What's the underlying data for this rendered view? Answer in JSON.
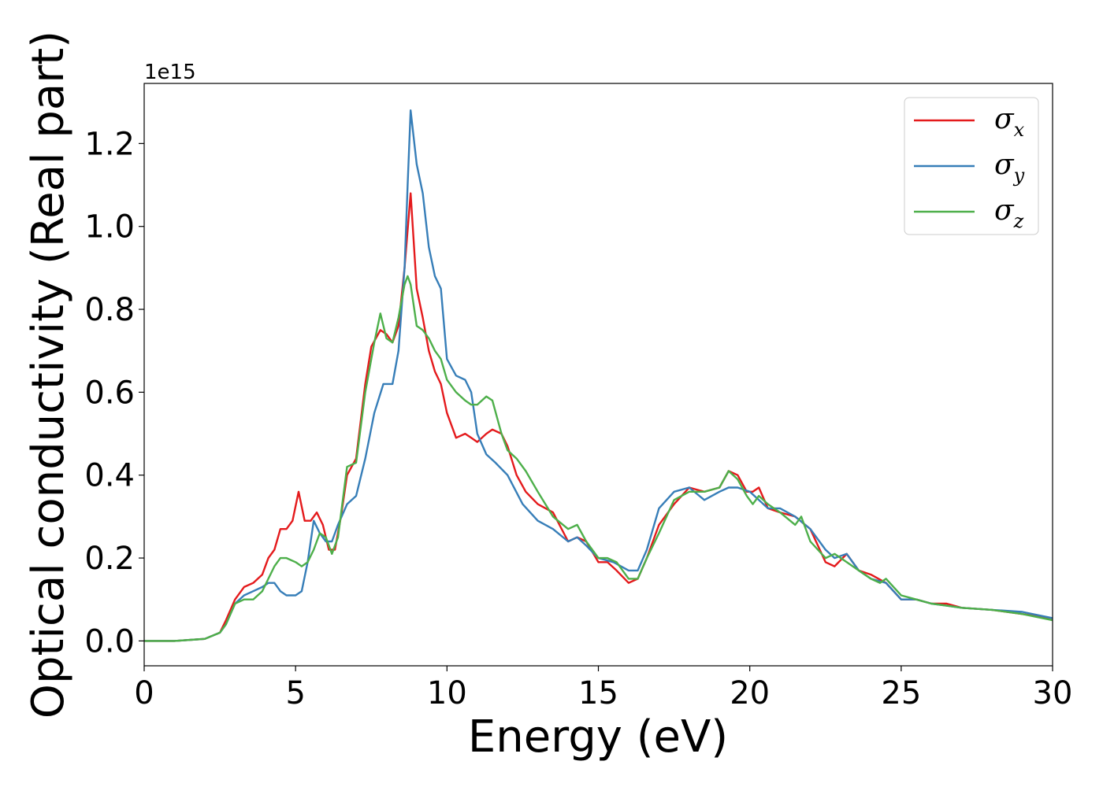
{
  "chart_data": {
    "type": "line",
    "title": "",
    "xlabel": "Energy (eV)",
    "ylabel": "Optical conductivity (Real part)",
    "y_offset_label": "1e15",
    "xlim": [
      0,
      30
    ],
    "ylim": [
      -0.06,
      1.345
    ],
    "x_ticks": [
      0,
      5,
      10,
      15,
      20,
      25,
      30
    ],
    "x_tick_labels": [
      "0",
      "5",
      "10",
      "15",
      "20",
      "25",
      "30"
    ],
    "y_ticks": [
      0.0,
      0.2,
      0.4,
      0.6,
      0.8,
      1.0,
      1.2
    ],
    "y_tick_labels": [
      "0.0",
      "0.2",
      "0.4",
      "0.6",
      "0.8",
      "1.0",
      "1.2"
    ],
    "grid": false,
    "legend_position": "top-right",
    "series": [
      {
        "name": "σ_x",
        "legend_symbol": "σ",
        "legend_subscript": "x",
        "color": "#e41a1c",
        "x": [
          0,
          1,
          2,
          2.5,
          2.7,
          3.0,
          3.3,
          3.6,
          3.9,
          4.1,
          4.3,
          4.5,
          4.7,
          4.9,
          5.1,
          5.3,
          5.5,
          5.7,
          5.9,
          6.1,
          6.3,
          6.5,
          6.7,
          7.0,
          7.3,
          7.5,
          7.8,
          8.0,
          8.2,
          8.4,
          8.6,
          8.8,
          9.0,
          9.2,
          9.4,
          9.6,
          9.8,
          10.0,
          10.3,
          10.6,
          10.8,
          11.0,
          11.3,
          11.5,
          11.8,
          12.0,
          12.3,
          12.6,
          13.0,
          13.5,
          14.0,
          14.3,
          14.6,
          15.0,
          15.3,
          15.6,
          16.0,
          16.3,
          16.6,
          17.0,
          17.5,
          18.0,
          18.5,
          19.0,
          19.3,
          19.6,
          19.9,
          20.1,
          20.3,
          20.6,
          21.0,
          21.5,
          22.0,
          22.5,
          22.8,
          23.2,
          23.6,
          24.0,
          24.5,
          25.0,
          25.5,
          26.0,
          26.5,
          27.0,
          28.0,
          29.0,
          30.0
        ],
        "y": [
          0.0,
          0.0,
          0.005,
          0.02,
          0.05,
          0.1,
          0.13,
          0.14,
          0.16,
          0.2,
          0.22,
          0.27,
          0.27,
          0.29,
          0.36,
          0.29,
          0.29,
          0.31,
          0.28,
          0.22,
          0.22,
          0.3,
          0.4,
          0.44,
          0.62,
          0.71,
          0.75,
          0.74,
          0.72,
          0.76,
          0.9,
          1.08,
          0.85,
          0.78,
          0.7,
          0.65,
          0.62,
          0.55,
          0.49,
          0.5,
          0.49,
          0.48,
          0.5,
          0.51,
          0.5,
          0.47,
          0.4,
          0.36,
          0.33,
          0.31,
          0.24,
          0.25,
          0.24,
          0.19,
          0.19,
          0.17,
          0.14,
          0.15,
          0.2,
          0.28,
          0.33,
          0.37,
          0.36,
          0.37,
          0.41,
          0.4,
          0.36,
          0.36,
          0.37,
          0.32,
          0.31,
          0.3,
          0.27,
          0.19,
          0.18,
          0.21,
          0.17,
          0.16,
          0.14,
          0.1,
          0.1,
          0.09,
          0.09,
          0.08,
          0.075,
          0.065,
          0.055
        ]
      },
      {
        "name": "σ_y",
        "legend_symbol": "σ",
        "legend_subscript": "y",
        "color": "#377eb8",
        "x": [
          0,
          1,
          2,
          2.5,
          2.7,
          3.0,
          3.3,
          3.6,
          3.9,
          4.1,
          4.3,
          4.5,
          4.7,
          5.0,
          5.2,
          5.4,
          5.6,
          5.8,
          6.0,
          6.2,
          6.4,
          6.7,
          7.0,
          7.3,
          7.6,
          7.9,
          8.2,
          8.4,
          8.6,
          8.7,
          8.8,
          9.0,
          9.2,
          9.4,
          9.6,
          9.8,
          10.0,
          10.3,
          10.6,
          10.8,
          11.0,
          11.3,
          11.6,
          12.0,
          12.5,
          13.0,
          13.5,
          14.0,
          14.3,
          14.6,
          15.0,
          15.5,
          16.0,
          16.3,
          16.6,
          17.0,
          17.5,
          18.0,
          18.5,
          19.0,
          19.3,
          19.6,
          20.0,
          20.3,
          20.6,
          21.0,
          21.5,
          22.0,
          22.5,
          22.8,
          23.2,
          23.6,
          24.0,
          24.5,
          25.0,
          25.5,
          26.0,
          26.5,
          27.0,
          28.0,
          29.0,
          30.0
        ],
        "y": [
          0.0,
          0.0,
          0.005,
          0.02,
          0.04,
          0.09,
          0.11,
          0.12,
          0.13,
          0.14,
          0.14,
          0.12,
          0.11,
          0.11,
          0.12,
          0.19,
          0.29,
          0.26,
          0.24,
          0.24,
          0.28,
          0.33,
          0.35,
          0.44,
          0.55,
          0.62,
          0.62,
          0.7,
          0.9,
          1.1,
          1.28,
          1.15,
          1.08,
          0.95,
          0.88,
          0.85,
          0.68,
          0.64,
          0.63,
          0.6,
          0.5,
          0.45,
          0.43,
          0.4,
          0.33,
          0.29,
          0.27,
          0.24,
          0.25,
          0.23,
          0.2,
          0.19,
          0.17,
          0.17,
          0.22,
          0.32,
          0.36,
          0.37,
          0.34,
          0.36,
          0.37,
          0.37,
          0.36,
          0.34,
          0.32,
          0.32,
          0.3,
          0.27,
          0.22,
          0.2,
          0.21,
          0.17,
          0.15,
          0.14,
          0.1,
          0.1,
          0.09,
          0.085,
          0.08,
          0.075,
          0.07,
          0.055
        ]
      },
      {
        "name": "σ_z",
        "legend_symbol": "σ",
        "legend_subscript": "z",
        "color": "#4daf4a",
        "x": [
          0,
          1,
          2,
          2.5,
          2.7,
          3.0,
          3.3,
          3.6,
          3.9,
          4.1,
          4.3,
          4.5,
          4.7,
          5.0,
          5.2,
          5.4,
          5.6,
          5.8,
          6.0,
          6.2,
          6.4,
          6.7,
          7.0,
          7.3,
          7.6,
          7.8,
          8.0,
          8.2,
          8.4,
          8.6,
          8.7,
          8.8,
          9.0,
          9.2,
          9.4,
          9.6,
          9.8,
          10.0,
          10.3,
          10.6,
          10.8,
          11.0,
          11.3,
          11.5,
          11.8,
          12.0,
          12.3,
          12.6,
          13.0,
          13.5,
          14.0,
          14.3,
          14.6,
          15.0,
          15.3,
          15.6,
          16.0,
          16.3,
          16.6,
          17.0,
          17.5,
          18.0,
          18.5,
          19.0,
          19.3,
          19.6,
          19.9,
          20.1,
          20.3,
          20.6,
          21.0,
          21.5,
          21.7,
          22.0,
          22.5,
          22.8,
          23.2,
          23.6,
          24.0,
          24.3,
          24.5,
          25.0,
          25.5,
          26.0,
          26.5,
          27.0,
          28.0,
          29.0,
          30.0
        ],
        "y": [
          0.0,
          0.0,
          0.005,
          0.02,
          0.04,
          0.09,
          0.1,
          0.1,
          0.12,
          0.15,
          0.18,
          0.2,
          0.2,
          0.19,
          0.18,
          0.19,
          0.22,
          0.26,
          0.25,
          0.21,
          0.25,
          0.42,
          0.43,
          0.6,
          0.72,
          0.79,
          0.73,
          0.72,
          0.78,
          0.86,
          0.88,
          0.86,
          0.76,
          0.75,
          0.73,
          0.7,
          0.68,
          0.63,
          0.6,
          0.58,
          0.57,
          0.57,
          0.59,
          0.58,
          0.5,
          0.46,
          0.44,
          0.41,
          0.36,
          0.3,
          0.27,
          0.28,
          0.24,
          0.2,
          0.2,
          0.19,
          0.15,
          0.15,
          0.2,
          0.26,
          0.34,
          0.36,
          0.36,
          0.37,
          0.41,
          0.39,
          0.35,
          0.33,
          0.35,
          0.33,
          0.31,
          0.28,
          0.3,
          0.24,
          0.2,
          0.21,
          0.19,
          0.17,
          0.15,
          0.14,
          0.15,
          0.11,
          0.1,
          0.09,
          0.085,
          0.08,
          0.075,
          0.065,
          0.05
        ]
      }
    ]
  }
}
